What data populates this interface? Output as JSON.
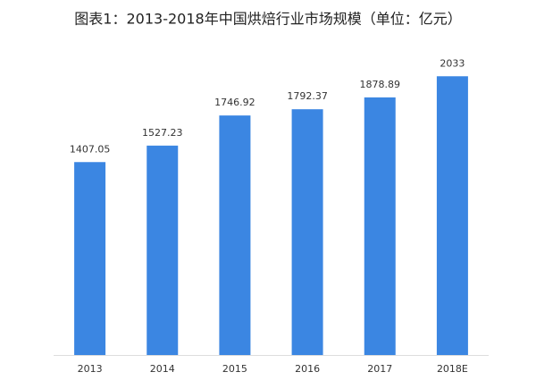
{
  "chart_data": {
    "type": "bar",
    "title": "图表1：2013-2018年中国烘焙行业市场规模（单位：亿元）",
    "categories": [
      "2013",
      "2014",
      "2015",
      "2016",
      "2017",
      "2018E"
    ],
    "values": [
      1407.05,
      1527.23,
      1746.92,
      1792.37,
      1878.89,
      2033
    ],
    "color": "#3b86e2",
    "ylim": [
      0,
      2100
    ]
  }
}
